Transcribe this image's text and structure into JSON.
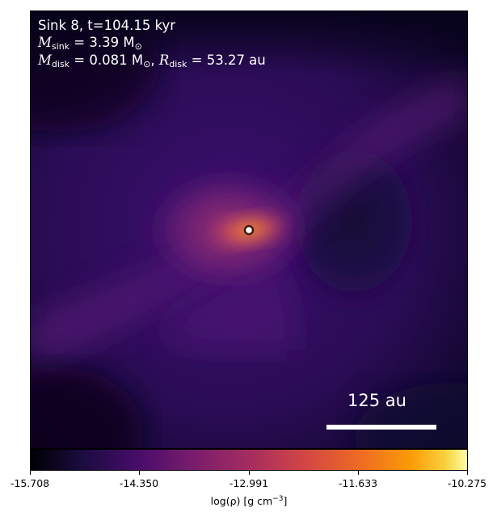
{
  "annotation": {
    "line1": "Sink 8, t=104.15 kyr",
    "msink_label": "M",
    "msink_sub": "sink",
    "msink_value": " = 3.39 M",
    "msink_sun": "⊙",
    "mdisk_label": "M",
    "mdisk_sub": "disk",
    "mdisk_value": " = 0.081 M",
    "mdisk_sun": "⊙",
    "rdisk_label": "R",
    "rdisk_sub": "disk",
    "rdisk_value": " = 53.27 au"
  },
  "scale_bar": {
    "label": "125 au"
  },
  "colorbar": {
    "ticks": [
      "-15.708",
      "-14.350",
      "-12.991",
      "-11.633",
      "-10.275"
    ],
    "label": "log(ρ) [g cm",
    "label_exp": "−3",
    "label_end": "]",
    "colormap": "inferno"
  }
}
